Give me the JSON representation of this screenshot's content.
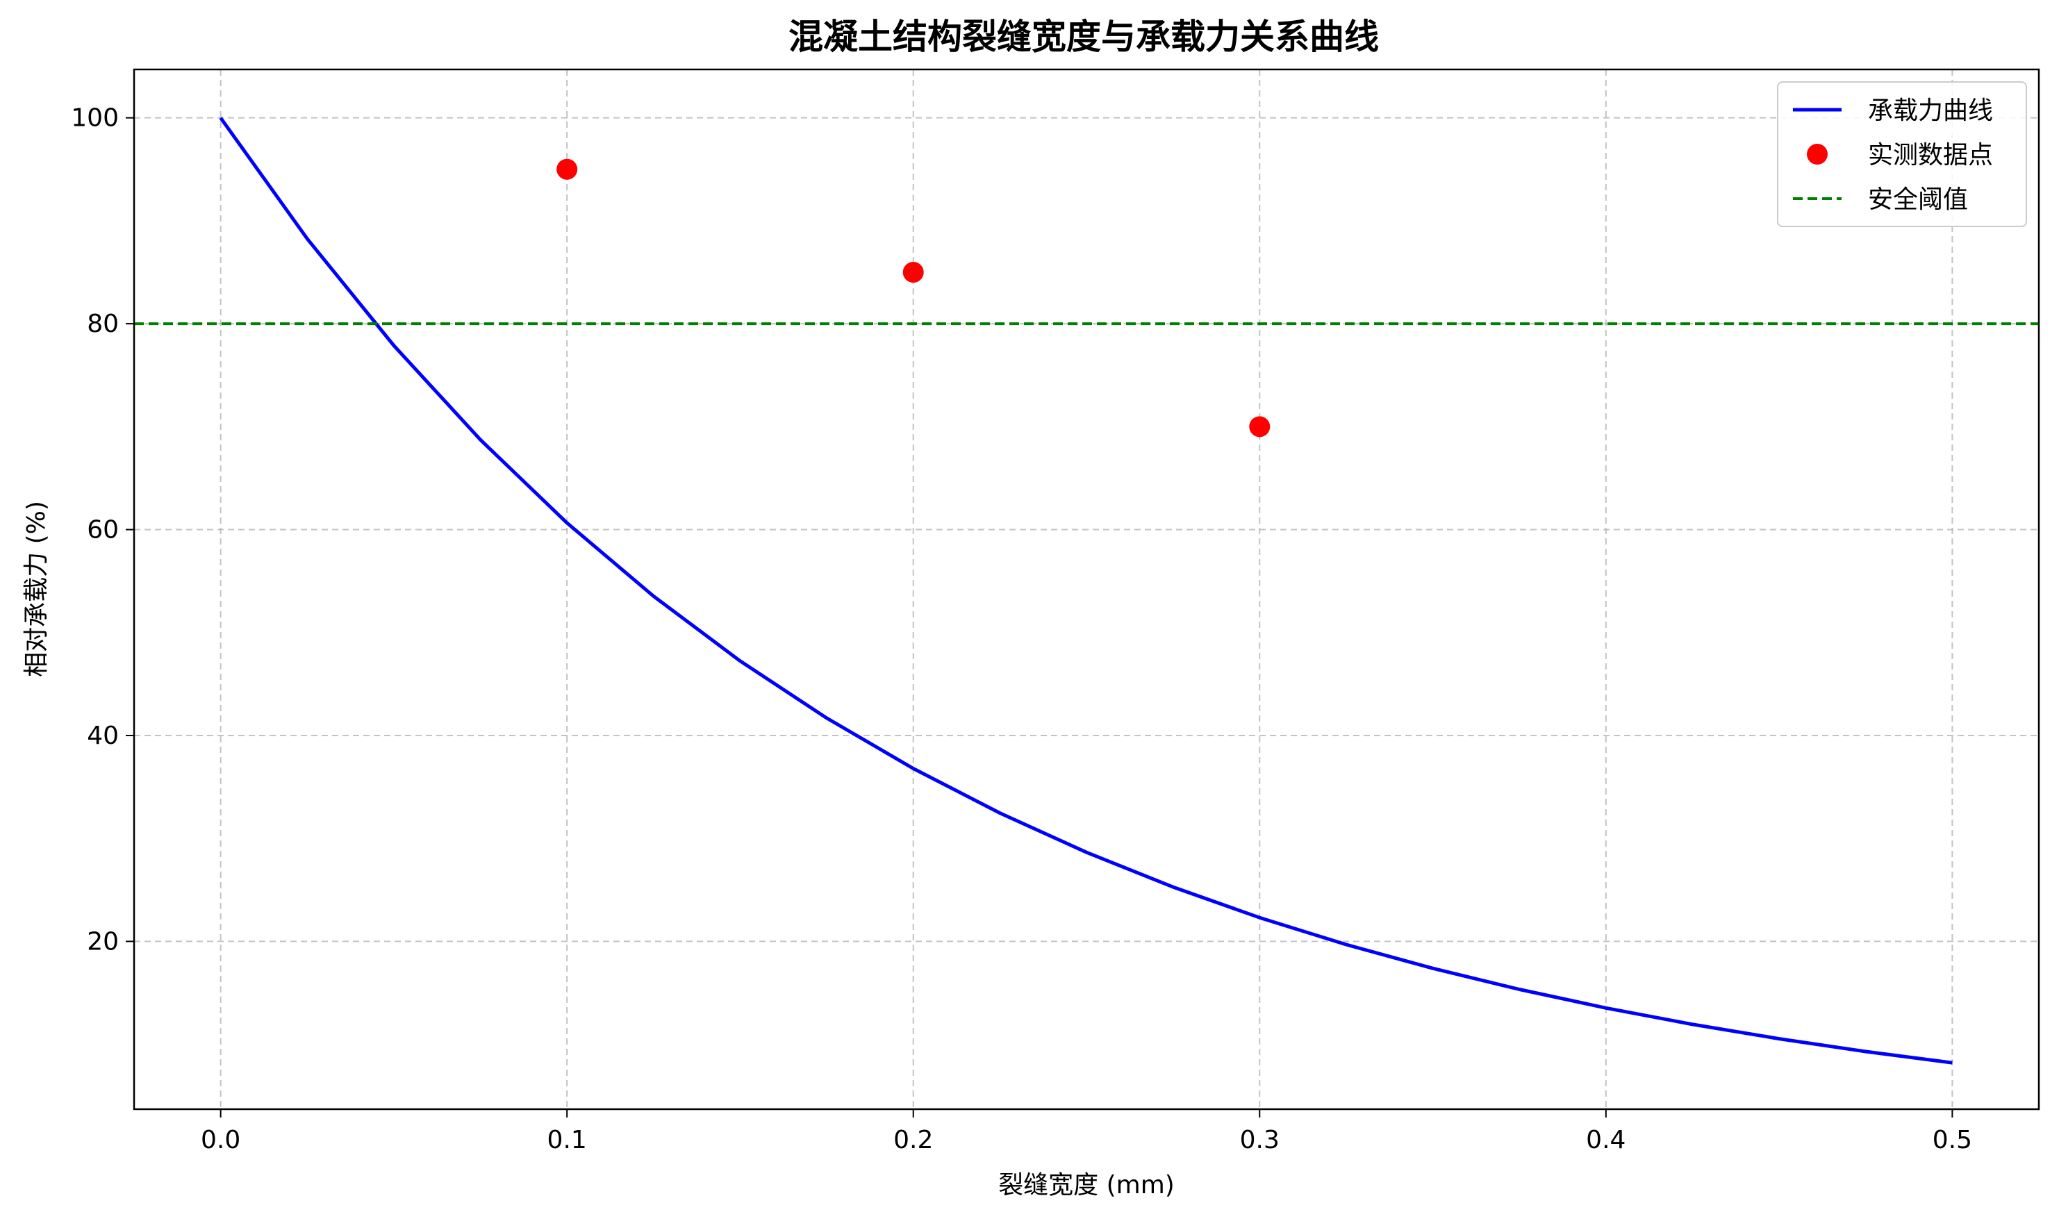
{
  "chart_data": {
    "type": "line",
    "title": "混凝土结构裂缝宽度与承载力关系曲线",
    "xlabel": "裂缝宽度 (mm)",
    "ylabel": "相对承载力 (%)",
    "xlim": [
      -0.025,
      0.525
    ],
    "ylim": [
      3.7,
      104.7
    ],
    "xticks": [
      0.0,
      0.1,
      0.2,
      0.3,
      0.4,
      0.5
    ],
    "xtick_labels": [
      "0.0",
      "0.1",
      "0.2",
      "0.3",
      "0.4",
      "0.5"
    ],
    "yticks": [
      20,
      40,
      60,
      80,
      100
    ],
    "ytick_labels": [
      "20",
      "40",
      "60",
      "80",
      "100"
    ],
    "grid": true,
    "legend_position": "top-right",
    "series": [
      {
        "name": "承载力曲线",
        "kind": "line",
        "color": "#0000ff",
        "x": [
          0.0,
          0.025,
          0.05,
          0.075,
          0.1,
          0.125,
          0.15,
          0.175,
          0.2,
          0.225,
          0.25,
          0.275,
          0.3,
          0.325,
          0.35,
          0.375,
          0.4,
          0.425,
          0.45,
          0.475,
          0.5
        ],
        "y": [
          100.0,
          88.25,
          77.88,
          68.73,
          60.65,
          53.53,
          47.24,
          41.69,
          36.79,
          32.47,
          28.65,
          25.28,
          22.31,
          19.69,
          17.38,
          15.34,
          13.53,
          11.94,
          10.54,
          9.3,
          8.21
        ]
      },
      {
        "name": "实测数据点",
        "kind": "scatter",
        "color": "#ff0000",
        "x": [
          0.1,
          0.2,
          0.3
        ],
        "y": [
          95,
          85,
          70
        ]
      },
      {
        "name": "安全阈值",
        "kind": "hline",
        "color": "#008000",
        "y": 80
      }
    ]
  }
}
